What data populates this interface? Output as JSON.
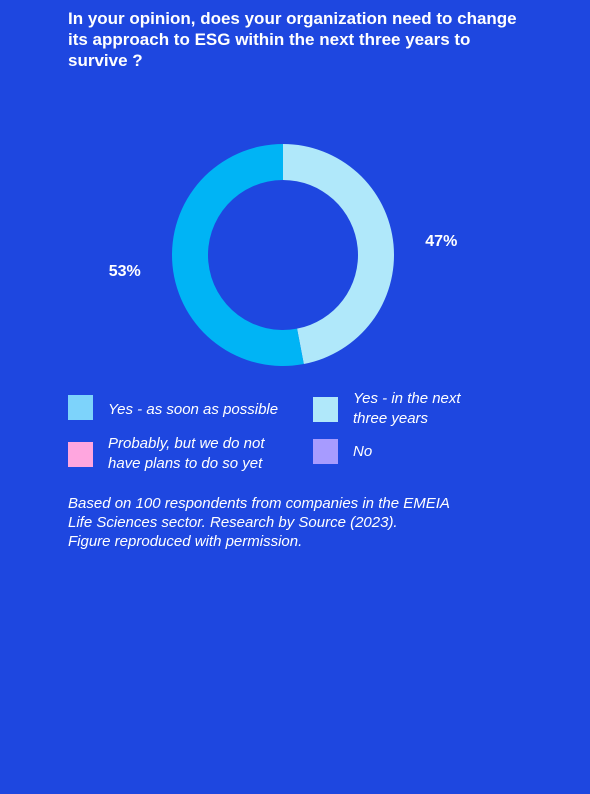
{
  "chart_data": {
    "type": "pie",
    "title": "In your opinion, does your organization need to change its approach to ESG within the next three years to survive ?",
    "slices": [
      {
        "label": "Yes - as soon as possible",
        "value": 53,
        "display": "53%",
        "color": "#00b4f5"
      },
      {
        "label": "Yes - in the next three years",
        "value": 47,
        "display": "47%",
        "color": "#b0e8fa"
      },
      {
        "label": "Probably, but we do not have plans to do so yet",
        "value": 0,
        "display": "",
        "color": "#ffa6df"
      },
      {
        "label": "No",
        "value": 0,
        "display": "",
        "color": "#a79bff"
      }
    ],
    "legend_position": "bottom",
    "donut": true
  },
  "legend": [
    {
      "label": "Yes - as soon as possible",
      "color": "#7dd3fb"
    },
    {
      "label": "Yes - in the next three years",
      "color": "#b0e8fa"
    },
    {
      "label": "Probably, but we do not have plans to do so yet",
      "color": "#ffa6df"
    },
    {
      "label": "No",
      "color": "#a79bff"
    }
  ],
  "note": {
    "line1": "Based on 100 respondents from companies in the EMEIA",
    "line2": "Life Sciences sector. Research by Source (2023).",
    "line3": "Figure reproduced with permission."
  }
}
